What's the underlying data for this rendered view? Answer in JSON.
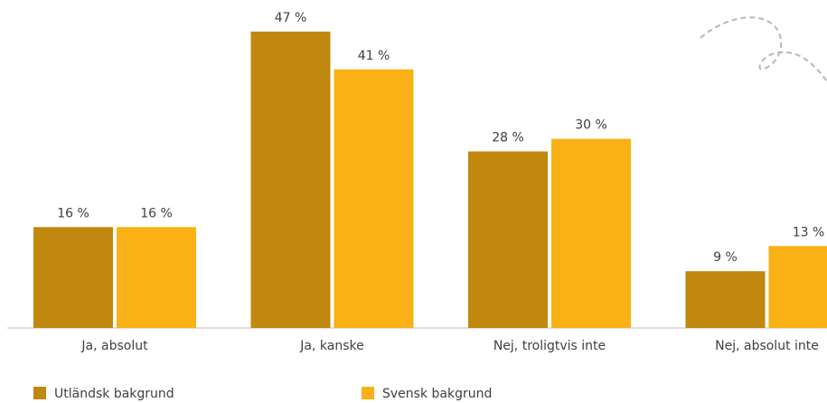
{
  "chart_data": {
    "type": "bar",
    "categories": [
      "Ja, absolut",
      "Ja, kanske",
      "Nej, troligtvis inte",
      "Nej, absolut inte"
    ],
    "series": [
      {
        "name": "Utländsk bakgrund",
        "color": "#c0880f",
        "values": [
          16,
          47,
          28,
          9
        ],
        "value_labels": [
          "16 %",
          "47 %",
          "28 %",
          "9 %"
        ]
      },
      {
        "name": "Svensk bakgrund",
        "color": "#f9b116",
        "values": [
          16,
          41,
          30,
          13
        ],
        "value_labels": [
          "16 %",
          "41 %",
          "30 %",
          "13 %"
        ]
      }
    ],
    "legend": "bottom-left"
  }
}
